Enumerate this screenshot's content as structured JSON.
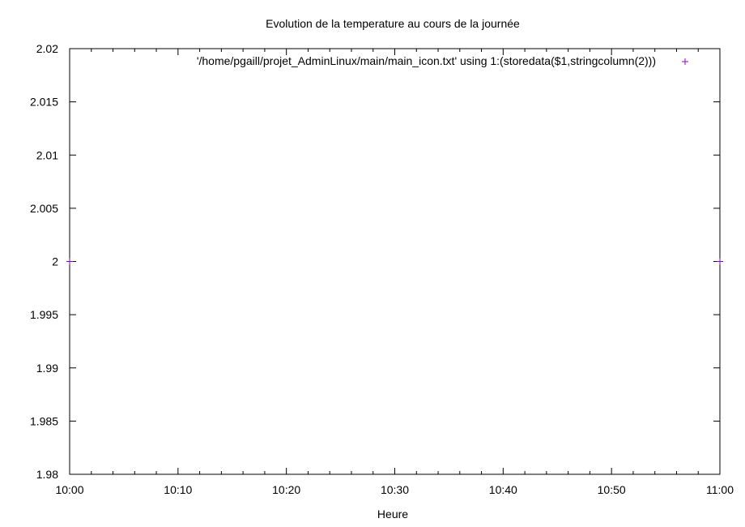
{
  "chart_data": {
    "type": "scatter",
    "title": "Evolution de la temperature au cours de la journée",
    "xlabel": "Heure",
    "ylabel": "",
    "x_ticks": [
      "10:00",
      "10:10",
      "10:20",
      "10:30",
      "10:40",
      "10:50",
      "11:00"
    ],
    "y_ticks": [
      "1.98",
      "1.985",
      "1.99",
      "1.995",
      "2",
      "2.005",
      "2.01",
      "2.015",
      "2.02"
    ],
    "xlim": [
      0,
      60
    ],
    "ylim": [
      1.98,
      2.02
    ],
    "x_minor_step": 2,
    "legend_position": "top-right",
    "grid": false,
    "series": [
      {
        "name": "'/home/pgaill/projet_AdminLinux/main/main_icon.txt' using 1:(storedata($1,stringcolumn(2)))",
        "color": "#9400d3",
        "marker": "plus",
        "points": [
          {
            "x": 0,
            "y": 2
          },
          {
            "x": 60,
            "y": 2
          }
        ]
      }
    ]
  }
}
